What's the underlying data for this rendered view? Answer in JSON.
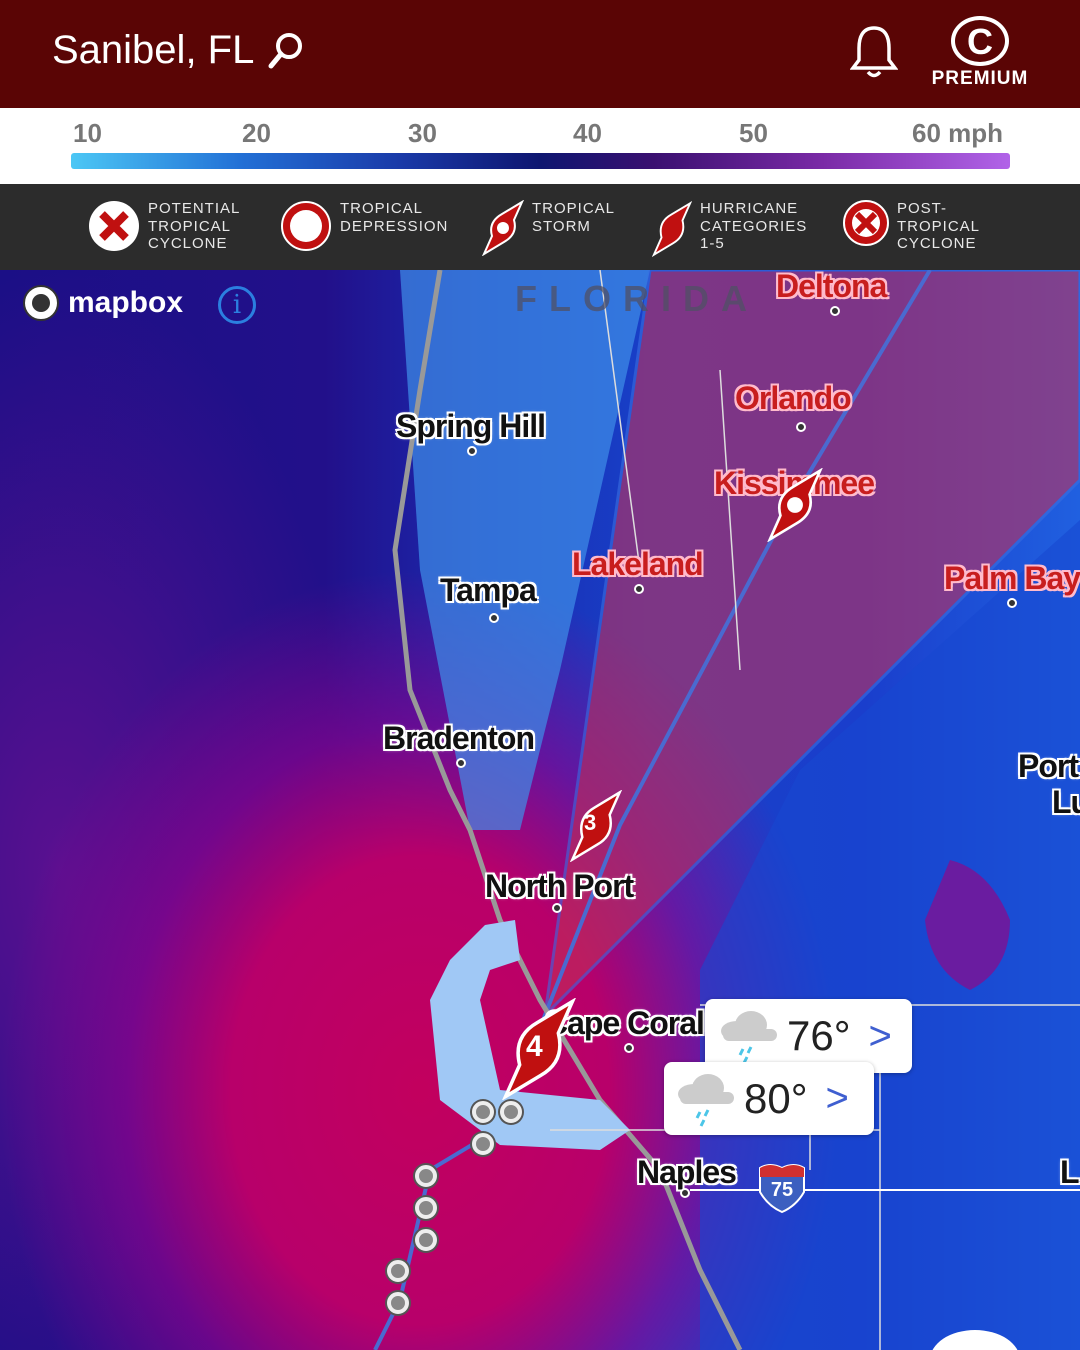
{
  "header": {
    "location": "Sanibel, FL",
    "premium_label": "PREMIUM",
    "premium_icon": "C"
  },
  "scale": {
    "ticks": [
      "10",
      "20",
      "30",
      "40",
      "50",
      "60 mph"
    ]
  },
  "legend": [
    {
      "label": "POTENTIAL TROPICAL CYCLONE",
      "icon": "x-circle-icon"
    },
    {
      "label": "TROPICAL DEPRESSION",
      "icon": "circle-icon"
    },
    {
      "label": "TROPICAL STORM",
      "icon": "tropical-storm-icon"
    },
    {
      "label": "HURRICANE CATEGORIES 1-5",
      "icon": "hurricane-icon"
    },
    {
      "label": "POST-TROPICAL CYCLONE",
      "icon": "post-tropical-icon"
    }
  ],
  "map": {
    "brand": "mapbox",
    "info": "i",
    "state": "FLORIDA",
    "cities": {
      "deltona": "Deltona",
      "orlando": "Orlando",
      "kissimmee": "Kissimmee",
      "spring_hill": "Spring Hill",
      "tampa": "Tampa",
      "lakeland": "Lakeland",
      "palm_bay": "Palm Bay",
      "bradenton": "Bradenton",
      "port_lucie_1": "Port",
      "port_lucie_2": "Lu",
      "north_port": "North Port",
      "cape_coral": "Cape Coral",
      "naples": "Naples",
      "edge": "L"
    },
    "highway": "75",
    "storm_categories": [
      "3",
      "4"
    ],
    "colors": {
      "cone": "#c0305a",
      "storm": "#c81e1e",
      "header": "#5a0505"
    }
  },
  "weather_cards": [
    {
      "temp": "76°",
      "icon": "rain-cloud-icon"
    },
    {
      "temp": "80°",
      "icon": "rain-cloud-icon"
    }
  ]
}
